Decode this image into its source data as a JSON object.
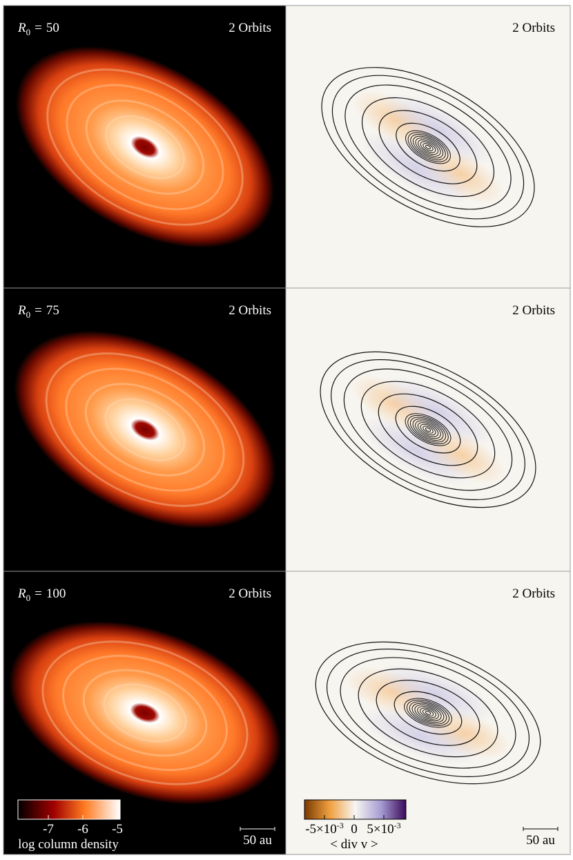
{
  "panels": [
    {
      "row_label": {
        "symbol": "R",
        "subscript": "0",
        "relation": "=",
        "value": "50"
      },
      "left_time": "2 Orbits",
      "right_time": "2 Orbits"
    },
    {
      "row_label": {
        "symbol": "R",
        "subscript": "0",
        "relation": "=",
        "value": "75"
      },
      "left_time": "2 Orbits",
      "right_time": "2 Orbits"
    },
    {
      "row_label": {
        "symbol": "R",
        "subscript": "0",
        "relation": "=",
        "value": "100"
      },
      "left_time": "2 Orbits",
      "right_time": "2 Orbits"
    }
  ],
  "density_colorbar": {
    "ticks": [
      "-7",
      "-6",
      "-5"
    ],
    "label": "log column density"
  },
  "divergence_colorbar": {
    "ticks": [
      {
        "base": "-5×10",
        "exponent": "-3"
      },
      {
        "base": "0",
        "exponent": ""
      },
      {
        "base": "5×10",
        "exponent": "-3"
      }
    ],
    "label": "< div v >"
  },
  "scale_bars": [
    "50 au",
    "50 au"
  ]
}
